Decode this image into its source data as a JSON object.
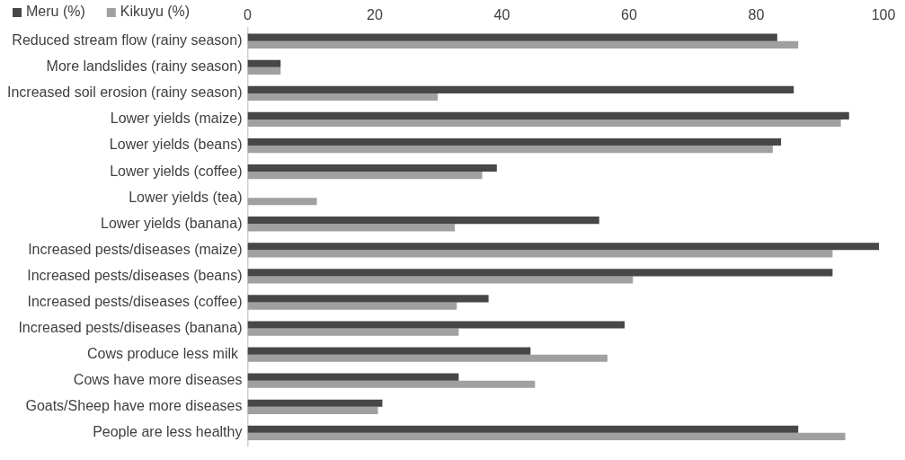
{
  "chart_data": {
    "type": "bar",
    "orientation": "horizontal",
    "legend": "top left",
    "categories": [
      "Reduced stream flow (rainy season)",
      "More landslides (rainy season)",
      "Increased soil erosion (rainy season)",
      "Lower yields (maize)",
      "Lower yields (beans)",
      "Lower yields (coffee)",
      "Lower yields (tea)",
      "Lower yields (banana)",
      "Increased pests/diseases (maize)",
      "Increased pests/diseases (beans)",
      "Increased pests/diseases (coffee)",
      "Increased pests/diseases (banana)",
      "Cows produce less milk ",
      "Cows have more diseases",
      "Goats/Sheep have more diseases",
      "People are less healthy"
    ],
    "series": [
      {
        "name": "Meru (%)",
        "color": "#474747",
        "values": [
          83.3,
          5.2,
          85.9,
          94.6,
          83.9,
          39.2,
          0,
          55.3,
          99.3,
          92.0,
          37.9,
          59.3,
          44.5,
          33.2,
          21.2,
          86.6
        ]
      },
      {
        "name": "Kikuyu (%)",
        "color": "#a0a0a0",
        "values": [
          86.6,
          5.2,
          29.9,
          93.3,
          82.6,
          36.9,
          10.9,
          32.6,
          92.0,
          60.6,
          32.9,
          33.2,
          56.6,
          45.2,
          20.5,
          94.0
        ]
      }
    ],
    "xlim": [
      0,
      100
    ],
    "xticks": [
      0,
      20,
      40,
      60,
      80,
      100
    ],
    "grid": false
  }
}
